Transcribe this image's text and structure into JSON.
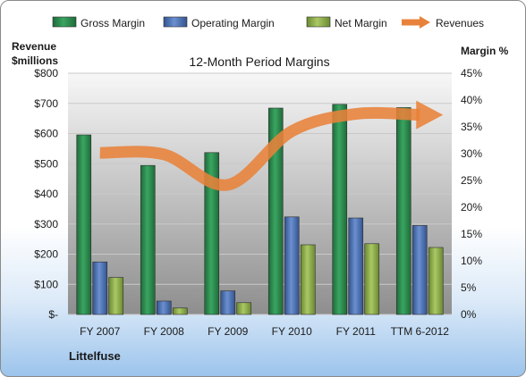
{
  "company": "Littelfuse",
  "chart_data": {
    "type": "bar",
    "title": "12-Month Period Margins",
    "categories": [
      "FY 2007",
      "FY 2008",
      "FY 2009",
      "FY 2010",
      "FY 2011",
      "TTM 6-2012"
    ],
    "left_axis": {
      "label_line1": "Revenue",
      "label_line2": "$millions",
      "ylim": [
        0,
        800
      ],
      "tick_values": [
        0,
        100,
        200,
        300,
        400,
        500,
        600,
        700,
        800
      ],
      "tick_labels": [
        "$-",
        "$100",
        "$200",
        "$300",
        "$400",
        "$500",
        "$600",
        "$700",
        "$800"
      ]
    },
    "right_axis": {
      "label": "Margin %",
      "ylim": [
        0,
        45
      ],
      "tick_values": [
        0,
        5,
        10,
        15,
        20,
        25,
        30,
        35,
        40,
        45
      ],
      "tick_labels": [
        "0%",
        "5%",
        "10%",
        "15%",
        "20%",
        "25%",
        "30%",
        "35%",
        "40%",
        "45%"
      ]
    },
    "series": [
      {
        "name": "Gross Margin",
        "axis": "right",
        "color": "#2e8b4e",
        "values": [
          33.5,
          27.8,
          30.2,
          38.5,
          39.2,
          38.6
        ]
      },
      {
        "name": "Operating Margin",
        "axis": "right",
        "color": "#4a6fb5",
        "values": [
          9.8,
          2.5,
          4.4,
          18.2,
          18.0,
          16.6
        ]
      },
      {
        "name": "Net Margin",
        "axis": "right",
        "color": "#8fb04a",
        "values": [
          6.9,
          1.2,
          2.2,
          13.0,
          13.2,
          12.5
        ]
      },
      {
        "name": "Revenues",
        "axis": "left",
        "type": "line",
        "color": "#e8823a",
        "values": [
          536,
          531,
          430,
          608,
          665,
          662
        ]
      }
    ],
    "grid": true,
    "legend_position": "top"
  }
}
